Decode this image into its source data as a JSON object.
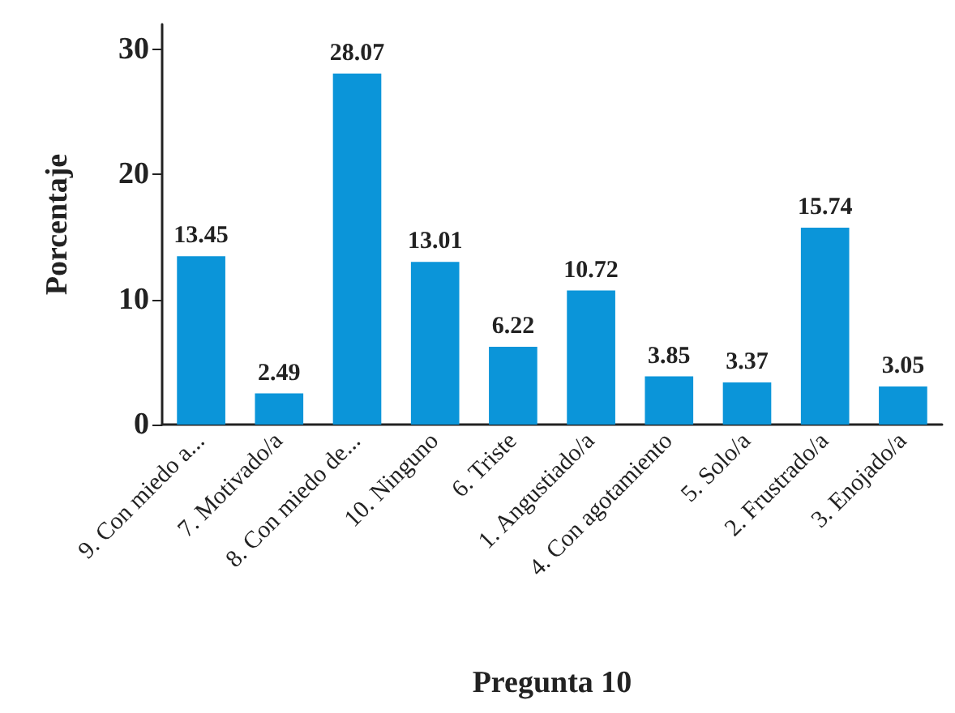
{
  "chart_data": {
    "type": "bar",
    "xlabel": "Pregunta 10",
    "ylabel": "Porcentaje",
    "categories": [
      "9. Con miedo a...",
      "7. Motivado/a",
      "8. Con miedo de...",
      "10. Ninguno",
      "6. Triste",
      "1. Angustiado/a",
      "4. Con agotamiento",
      "5. Solo/a",
      "2. Frustrado/a",
      "3. Enojado/a"
    ],
    "values": [
      13.45,
      2.49,
      28.07,
      13.01,
      6.22,
      10.72,
      3.85,
      3.37,
      15.74,
      3.05
    ],
    "color": "#0b95d9",
    "ylim": [
      0,
      32
    ],
    "yticks": [
      0,
      10,
      20,
      30
    ],
    "data_labels": true,
    "grid": false
  }
}
